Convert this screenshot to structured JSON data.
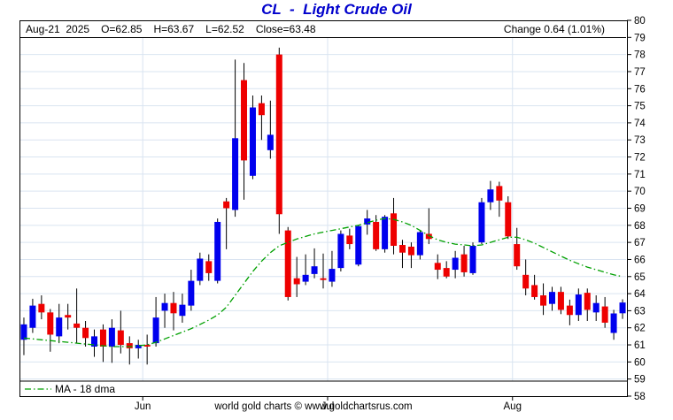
{
  "title": "CL  -  Light Crude Oil",
  "info_bar": {
    "date": "Aug-21  2025",
    "open": "O=62.85",
    "high": "H=63.67",
    "low": "L=62.52",
    "close": "Close=63.48",
    "change": "Change 0.64 (1.01%)"
  },
  "legend": {
    "label": "MA - 18 dma"
  },
  "footer": "world gold charts © www.goldchartsrus.com",
  "colors": {
    "up": "#0000ee",
    "down": "#ee0000",
    "ma": "#00a000",
    "grid": "#d9e4f1",
    "axis": "#000000",
    "wick": "#000000",
    "title": "#0000cc"
  },
  "chart_data": {
    "type": "candlestick+line",
    "title": "CL - Light Crude Oil",
    "ylabel": "",
    "xlabel": "",
    "ylim": [
      58,
      80
    ],
    "grid": true,
    "y_ticks": [
      58,
      59,
      60,
      61,
      62,
      63,
      64,
      65,
      66,
      67,
      68,
      69,
      70,
      71,
      72,
      73,
      74,
      75,
      76,
      77,
      78,
      79,
      80
    ],
    "x_ticks": [
      {
        "label": "Jun",
        "boundary_index": 14
      },
      {
        "label": "Jul",
        "boundary_index": 35
      },
      {
        "label": "Aug",
        "boundary_index": 56
      }
    ],
    "ohlc_note": "69 daily candles, mid-May 2025 through Aug-21 2025, values in USD/bbl [open,high,low,close]",
    "candles_ohlc": [
      [
        61.3,
        62.6,
        60.4,
        62.2
      ],
      [
        62.0,
        63.7,
        61.7,
        63.3
      ],
      [
        63.4,
        63.9,
        62.5,
        62.9
      ],
      [
        62.9,
        63.1,
        60.6,
        61.6
      ],
      [
        61.5,
        63.4,
        61.1,
        62.6
      ],
      [
        62.75,
        63.4,
        61.9,
        62.6
      ],
      [
        62.25,
        64.3,
        61.1,
        62.0
      ],
      [
        62.0,
        62.4,
        60.9,
        61.4
      ],
      [
        60.9,
        61.9,
        60.3,
        61.5
      ],
      [
        61.9,
        62.2,
        60.0,
        60.9
      ],
      [
        60.9,
        62.5,
        59.95,
        62.0
      ],
      [
        61.85,
        63.0,
        60.5,
        61.0
      ],
      [
        61.1,
        61.5,
        59.85,
        60.8
      ],
      [
        60.8,
        61.3,
        60.2,
        61.0
      ],
      [
        61.0,
        61.6,
        59.85,
        60.9
      ],
      [
        61.1,
        63.8,
        60.9,
        62.6
      ],
      [
        63.0,
        64.0,
        62.0,
        63.45
      ],
      [
        63.45,
        64.1,
        61.85,
        62.85
      ],
      [
        62.7,
        64.0,
        62.3,
        63.35
      ],
      [
        63.3,
        65.4,
        63.0,
        64.75
      ],
      [
        64.75,
        66.4,
        64.5,
        66.05
      ],
      [
        65.9,
        66.3,
        64.75,
        65.2
      ],
      [
        64.75,
        68.4,
        64.6,
        68.2
      ],
      [
        69.4,
        69.6,
        66.6,
        69.0
      ],
      [
        68.9,
        77.7,
        68.5,
        73.1
      ],
      [
        76.5,
        77.5,
        69.5,
        71.8
      ],
      [
        70.9,
        75.6,
        70.7,
        74.9
      ],
      [
        75.15,
        75.6,
        73.0,
        74.45
      ],
      [
        72.4,
        75.3,
        71.9,
        73.3
      ],
      [
        78.0,
        78.4,
        67.5,
        68.65
      ],
      [
        67.7,
        67.9,
        63.6,
        63.8
      ],
      [
        64.9,
        66.15,
        63.8,
        64.55
      ],
      [
        64.7,
        66.3,
        64.5,
        65.1
      ],
      [
        65.15,
        66.65,
        64.9,
        65.6
      ],
      [
        64.9,
        66.35,
        64.3,
        64.8
      ],
      [
        64.7,
        66.5,
        64.4,
        65.45
      ],
      [
        65.5,
        67.7,
        65.3,
        67.5
      ],
      [
        67.4,
        67.8,
        66.6,
        66.9
      ],
      [
        65.7,
        68.0,
        65.6,
        67.95
      ],
      [
        68.05,
        68.9,
        67.45,
        68.4
      ],
      [
        68.2,
        68.6,
        66.5,
        66.6
      ],
      [
        66.6,
        68.6,
        66.4,
        68.5
      ],
      [
        68.7,
        69.6,
        66.3,
        66.8
      ],
      [
        66.85,
        67.15,
        65.5,
        66.4
      ],
      [
        66.75,
        67.0,
        65.5,
        66.25
      ],
      [
        66.25,
        67.7,
        66.0,
        67.6
      ],
      [
        67.5,
        69.0,
        66.9,
        67.2
      ],
      [
        65.8,
        66.3,
        64.85,
        65.4
      ],
      [
        65.5,
        65.9,
        64.9,
        65.0
      ],
      [
        65.4,
        66.5,
        64.9,
        66.1
      ],
      [
        66.3,
        66.8,
        65.0,
        65.25
      ],
      [
        65.2,
        67.0,
        65.1,
        66.8
      ],
      [
        67.0,
        69.6,
        66.9,
        69.35
      ],
      [
        69.35,
        70.6,
        68.9,
        70.1
      ],
      [
        70.3,
        70.55,
        68.5,
        69.45
      ],
      [
        69.35,
        69.7,
        67.2,
        67.35
      ],
      [
        66.9,
        67.85,
        65.4,
        65.6
      ],
      [
        65.1,
        66.0,
        63.9,
        64.3
      ],
      [
        64.5,
        65.1,
        63.65,
        63.8
      ],
      [
        63.9,
        64.6,
        62.75,
        63.3
      ],
      [
        63.4,
        64.4,
        63.0,
        64.1
      ],
      [
        64.1,
        64.4,
        62.8,
        63.05
      ],
      [
        63.3,
        63.65,
        62.15,
        62.75
      ],
      [
        62.75,
        64.3,
        62.4,
        63.95
      ],
      [
        64.05,
        64.3,
        62.4,
        63.05
      ],
      [
        62.9,
        63.9,
        62.4,
        63.45
      ],
      [
        63.25,
        63.8,
        62.0,
        62.3
      ],
      [
        61.7,
        63.05,
        61.3,
        62.84
      ],
      [
        62.85,
        63.67,
        62.52,
        63.48
      ]
    ],
    "ma_18dma": [
      61.4,
      61.35,
      61.3,
      61.25,
      61.2,
      61.15,
      61.1,
      61.05,
      61.0,
      60.95,
      60.9,
      60.9,
      60.9,
      60.95,
      61.0,
      61.15,
      61.35,
      61.55,
      61.75,
      61.95,
      62.2,
      62.45,
      62.75,
      63.2,
      63.9,
      64.6,
      65.3,
      65.9,
      66.4,
      66.8,
      67.0,
      67.2,
      67.35,
      67.5,
      67.6,
      67.7,
      67.8,
      67.9,
      68.0,
      68.15,
      68.3,
      68.4,
      68.35,
      68.2,
      68.0,
      67.7,
      67.4,
      67.15,
      67.0,
      66.9,
      66.85,
      66.8,
      66.85,
      67.0,
      67.15,
      67.3,
      67.3,
      67.15,
      66.95,
      66.7,
      66.45,
      66.2,
      65.95,
      65.75,
      65.55,
      65.4,
      65.25,
      65.1,
      65.0
    ],
    "legend_position": "bottom-left"
  }
}
